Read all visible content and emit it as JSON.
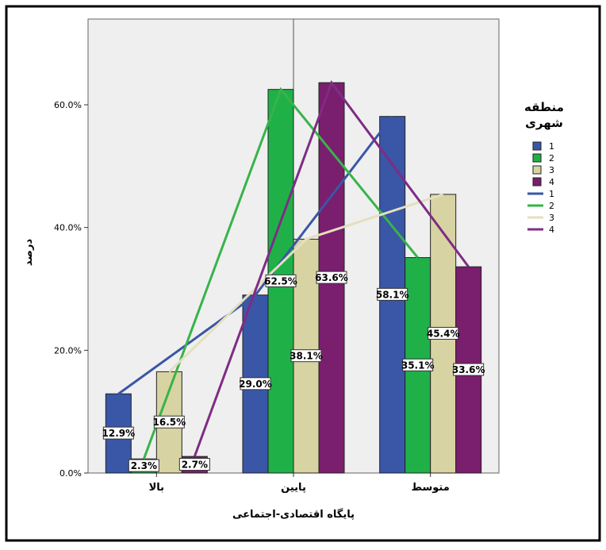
{
  "chart_data": {
    "type": "bar",
    "categories": [
      "بالا",
      "پایین",
      "متوسط"
    ],
    "series": [
      {
        "name": "1",
        "values": [
          12.9,
          29.0,
          58.1
        ],
        "color": "#3a56a6"
      },
      {
        "name": "2",
        "values": [
          2.3,
          62.5,
          35.1
        ],
        "color": "#1fb148"
      },
      {
        "name": "3",
        "values": [
          16.5,
          38.1,
          45.4
        ],
        "color": "#d8d3a3"
      },
      {
        "name": "4",
        "values": [
          2.7,
          63.6,
          33.6
        ],
        "color": "#7a1e6e"
      }
    ],
    "line_colors": [
      "#3a56a6",
      "#38b34a",
      "#e4dfbe",
      "#7f2c84"
    ],
    "data_labels": [
      [
        "12.9%",
        "29.0%",
        "58.1%"
      ],
      [
        "2.3%",
        "62.5%",
        "35.1%"
      ],
      [
        "16.5%",
        "38.1%",
        "45.4%"
      ],
      [
        "2.7%",
        "63.6%",
        "33.6%"
      ]
    ],
    "overlay_lines": true,
    "xlabel": "پایگاه اقتصادی-اجتماعی",
    "ylabel": "درصد",
    "ylim": [
      0,
      75
    ],
    "yticks": [
      "0.0%",
      "20.0%",
      "40.0%",
      "60.0%"
    ],
    "ytick_values": [
      0,
      20,
      40,
      60
    ],
    "legend_title": "منطقه شهری",
    "legend_placement": "right",
    "plot_background": "#efefef",
    "grid": false
  }
}
